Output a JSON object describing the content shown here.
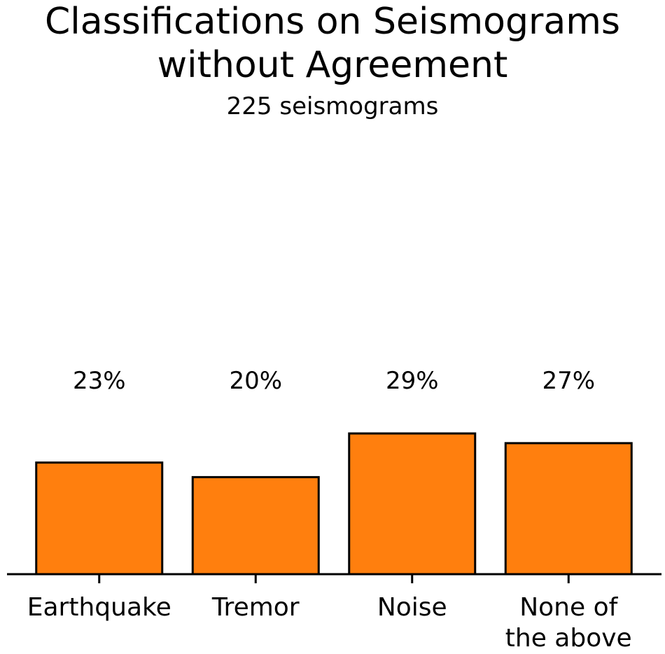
{
  "chart_data": {
    "type": "bar",
    "title": "Classifications on Seismograms\nwithout Agreement",
    "subtitle": "225 seismograms",
    "categories": [
      "Earthquake",
      "Tremor",
      "Noise",
      "None of\nthe above"
    ],
    "values": [
      23,
      20,
      29,
      27
    ],
    "value_labels": [
      "23%",
      "20%",
      "29%",
      "27%"
    ],
    "color": "#ff7f0e"
  }
}
